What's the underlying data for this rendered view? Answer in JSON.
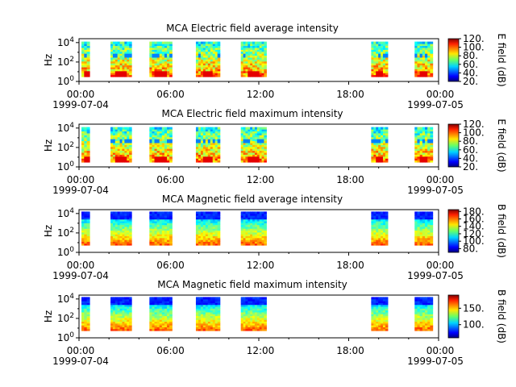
{
  "chart_data": [
    {
      "type": "heatmap",
      "title": "MCA  Electric field average intensity",
      "ylabel": "Hz",
      "yscale": "log",
      "yticks": [
        "10^0",
        "10^2",
        "10^4"
      ],
      "xlim": [
        "1999-07-04 00:00",
        "1999-07-05 00:00"
      ],
      "xticks": [
        "00:00",
        "06:00",
        "12:00",
        "18:00",
        "00:00"
      ],
      "xdates": [
        "1999-07-04",
        "1999-07-05"
      ],
      "colorbar": {
        "label": "E field (dB)",
        "ticks": [
          20,
          40,
          60,
          80,
          100,
          120
        ],
        "range": [
          20,
          120
        ]
      },
      "data_intervals_hours": [
        [
          0.0,
          0.7
        ],
        [
          2.1,
          3.5
        ],
        [
          4.7,
          6.2
        ],
        [
          7.8,
          9.4
        ],
        [
          10.8,
          12.5
        ],
        [
          19.5,
          20.6
        ],
        [
          22.4,
          23.6
        ]
      ]
    },
    {
      "type": "heatmap",
      "title": "MCA  Electric field maximum intensity",
      "ylabel": "Hz",
      "yscale": "log",
      "yticks": [
        "10^0",
        "10^2",
        "10^4"
      ],
      "xlim": [
        "1999-07-04 00:00",
        "1999-07-05 00:00"
      ],
      "xticks": [
        "00:00",
        "06:00",
        "12:00",
        "18:00",
        "00:00"
      ],
      "xdates": [
        "1999-07-04",
        "1999-07-05"
      ],
      "colorbar": {
        "label": "E field (dB)",
        "ticks": [
          20,
          40,
          60,
          80,
          100,
          120
        ],
        "range": [
          20,
          120
        ]
      },
      "data_intervals_hours": [
        [
          0.0,
          0.7
        ],
        [
          2.1,
          3.5
        ],
        [
          4.7,
          6.2
        ],
        [
          7.8,
          9.4
        ],
        [
          10.8,
          12.5
        ],
        [
          19.5,
          20.6
        ],
        [
          22.4,
          23.6
        ]
      ]
    },
    {
      "type": "heatmap",
      "title": "MCA  Magnetic field average intensity",
      "ylabel": "Hz",
      "yscale": "log",
      "yticks": [
        "10^0",
        "10^2",
        "10^4"
      ],
      "xlim": [
        "1999-07-04 00:00",
        "1999-07-05 00:00"
      ],
      "xticks": [
        "00:00",
        "06:00",
        "12:00",
        "18:00",
        "00:00"
      ],
      "xdates": [
        "1999-07-04",
        "1999-07-05"
      ],
      "colorbar": {
        "label": "B field (dB)",
        "ticks": [
          80,
          100,
          120,
          140,
          160,
          180
        ],
        "range": [
          70,
          185
        ]
      },
      "data_intervals_hours": [
        [
          0.0,
          0.7
        ],
        [
          2.1,
          3.5
        ],
        [
          4.7,
          6.2
        ],
        [
          7.8,
          9.4
        ],
        [
          10.8,
          12.5
        ],
        [
          19.5,
          20.6
        ],
        [
          22.4,
          23.6
        ]
      ]
    },
    {
      "type": "heatmap",
      "title": "MCA  Magnetic field maximum intensity",
      "ylabel": "Hz",
      "yscale": "log",
      "yticks": [
        "10^0",
        "10^2",
        "10^4"
      ],
      "xlim": [
        "1999-07-04 00:00",
        "1999-07-05 00:00"
      ],
      "xticks": [
        "00:00",
        "06:00",
        "12:00",
        "18:00",
        "00:00"
      ],
      "xdates": [
        "1999-07-04",
        "1999-07-05"
      ],
      "colorbar": {
        "label": "B field (dB)",
        "ticks": [
          100,
          150
        ],
        "range": [
          60,
          190
        ]
      },
      "data_intervals_hours": [
        [
          0.0,
          0.7
        ],
        [
          2.1,
          3.5
        ],
        [
          4.7,
          6.2
        ],
        [
          7.8,
          9.4
        ],
        [
          10.8,
          12.5
        ],
        [
          19.5,
          20.6
        ],
        [
          22.4,
          23.6
        ]
      ]
    }
  ]
}
